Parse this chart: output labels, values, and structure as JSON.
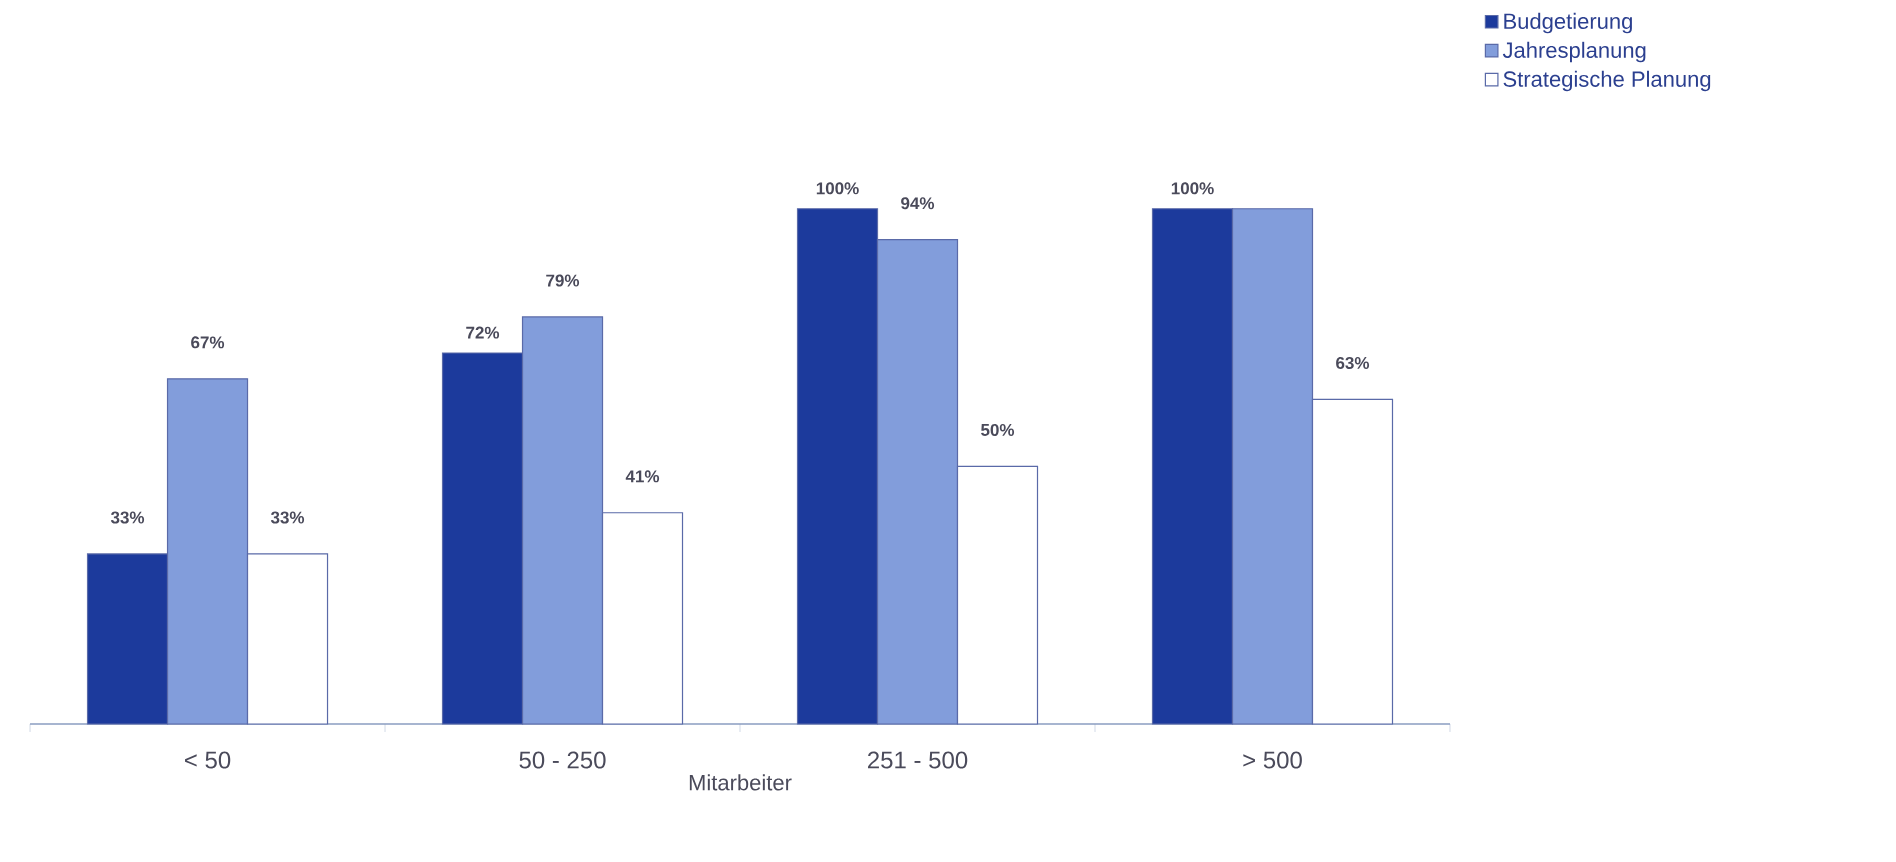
{
  "chart_data": {
    "type": "bar",
    "xlabel": "Mitarbeiter",
    "categories": [
      "< 50",
      "50 - 250",
      "251 - 500",
      "> 500"
    ],
    "legend": "top right",
    "series": [
      {
        "name": "Budgetierung",
        "color": "#1c3a9c",
        "values": [
          33,
          72,
          100,
          100
        ],
        "value_labels": [
          "33%",
          "72%",
          "100%",
          "100%"
        ]
      },
      {
        "name": "Jahresplanung",
        "color": "#829ddb",
        "values": [
          67,
          79,
          94,
          100
        ],
        "value_labels": [
          "67%",
          "79%",
          "94%",
          null
        ]
      },
      {
        "name": "Strategische Planung",
        "color": "#ffffff",
        "values": [
          33,
          41,
          50,
          63
        ],
        "value_labels": [
          "33%",
          "41%",
          "50%",
          "63%"
        ]
      }
    ]
  }
}
